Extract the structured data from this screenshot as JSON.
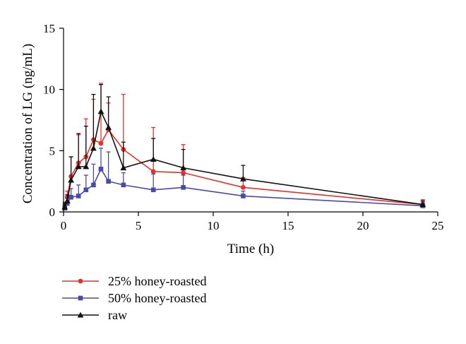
{
  "chart_data": {
    "type": "line",
    "xlabel": "Time (h)",
    "ylabel": "Concentration of LG (ng/mL)",
    "xlim": [
      0,
      25
    ],
    "ylim": [
      0,
      15
    ],
    "xticks": [
      0,
      5,
      10,
      15,
      20,
      25
    ],
    "yticks": [
      0,
      5,
      10,
      15
    ],
    "xtick_labels": [
      "0",
      "5",
      "10",
      "15",
      "20",
      "25"
    ],
    "ytick_labels": [
      "0",
      "5",
      "10",
      "15"
    ],
    "grid": false,
    "legend_position": "bottom-left",
    "series": [
      {
        "name": "25% honey-roasted",
        "color": "#e8302a",
        "marker": "circle",
        "x": [
          0.083,
          0.25,
          0.5,
          1,
          1.5,
          2,
          2.5,
          3,
          4,
          6,
          8,
          12,
          24
        ],
        "y": [
          0.5,
          1.2,
          2.9,
          4.0,
          4.5,
          5.9,
          5.6,
          6.7,
          5.1,
          3.3,
          3.2,
          2.0,
          0.6
        ],
        "error": [
          0.3,
          0.5,
          1.6,
          2.3,
          3.1,
          3.3,
          4.9,
          2.2,
          4.5,
          3.6,
          2.3,
          0.8,
          0.4
        ]
      },
      {
        "name": "50% honey-roasted",
        "color": "#4a4aa8",
        "marker": "square",
        "x": [
          0.083,
          0.25,
          0.5,
          1,
          1.5,
          2,
          2.5,
          3,
          4,
          6,
          8,
          12,
          24
        ],
        "y": [
          0.3,
          0.7,
          1.2,
          1.3,
          1.8,
          2.2,
          3.5,
          2.5,
          2.2,
          1.8,
          2.0,
          1.3,
          0.5
        ],
        "error": [
          0.2,
          0.4,
          0.7,
          0.9,
          1.2,
          1.7,
          1.7,
          2.4,
          1.0,
          1.3,
          1.0,
          0.4,
          0.3
        ]
      },
      {
        "name": "raw",
        "color": "#111111",
        "marker": "triangle",
        "x": [
          0.083,
          0.25,
          0.5,
          1,
          1.5,
          2,
          2.5,
          3,
          4,
          6,
          8,
          12,
          24
        ],
        "y": [
          0.4,
          0.9,
          2.6,
          3.7,
          3.7,
          5.2,
          8.2,
          6.9,
          3.6,
          4.3,
          3.6,
          2.7,
          0.6
        ],
        "error": [
          0.3,
          0.5,
          1.9,
          2.7,
          3.3,
          4.4,
          2.2,
          2.5,
          2.1,
          1.7,
          1.5,
          1.1,
          0.3
        ]
      }
    ]
  }
}
